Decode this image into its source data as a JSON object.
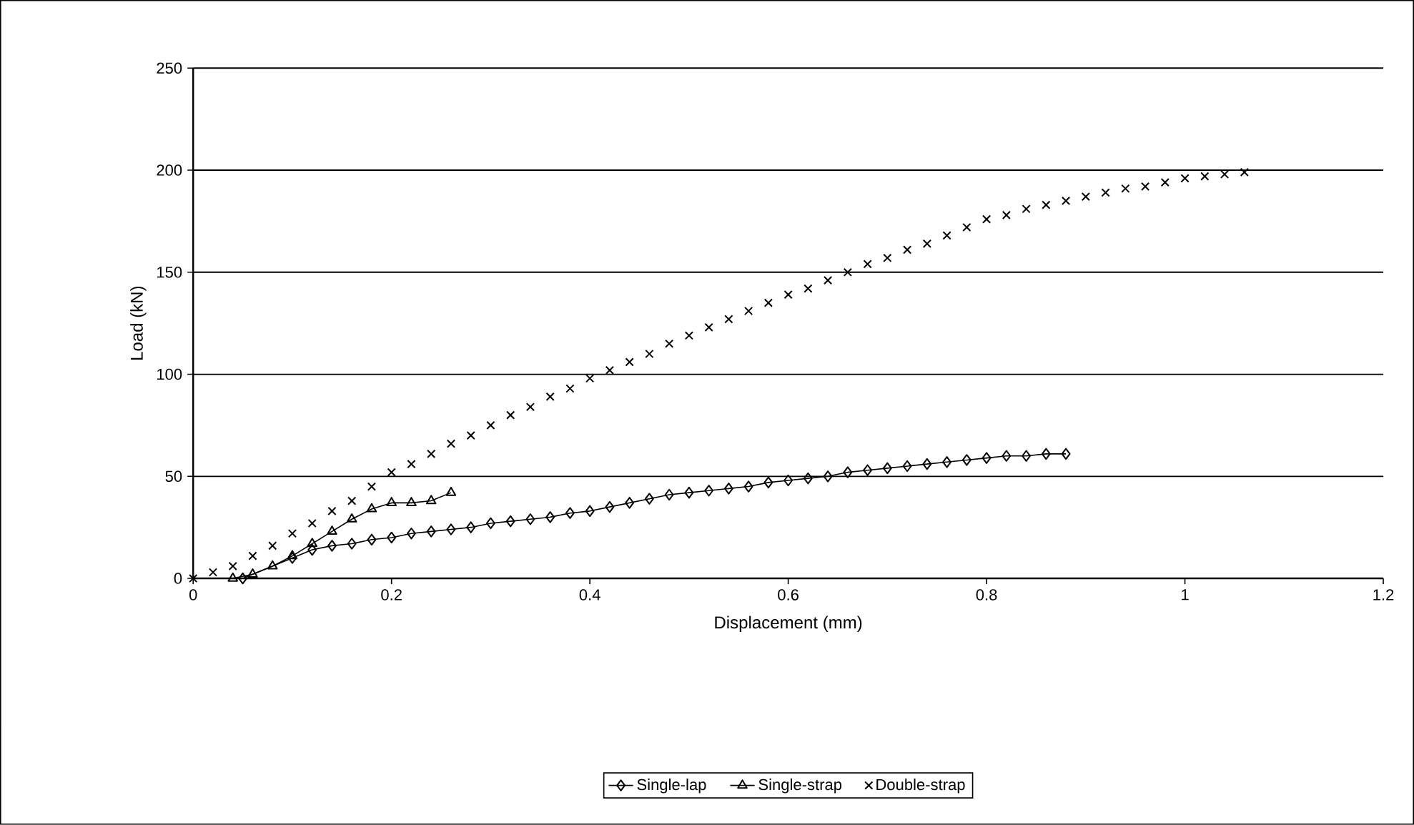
{
  "chart_data": {
    "type": "line",
    "xlabel": "Displacement (mm)",
    "ylabel": "Load (kN)",
    "xlim": [
      0,
      1.2
    ],
    "ylim": [
      0,
      250
    ],
    "xticks": [
      0,
      0.2,
      0.4,
      0.6,
      0.8,
      1,
      1.2
    ],
    "yticks": [
      0,
      50,
      100,
      150,
      200,
      250
    ],
    "grid": "y",
    "legend": "bottom",
    "series": [
      {
        "name": "Single-lap",
        "color": "#000000",
        "marker": "diamond",
        "line_style": "solid",
        "x": [
          0.05,
          0.1,
          0.12,
          0.14,
          0.16,
          0.18,
          0.2,
          0.22,
          0.24,
          0.26,
          0.28,
          0.3,
          0.32,
          0.34,
          0.36,
          0.38,
          0.4,
          0.42,
          0.44,
          0.46,
          0.48,
          0.5,
          0.52,
          0.54,
          0.56,
          0.58,
          0.6,
          0.62,
          0.64,
          0.66,
          0.68,
          0.7,
          0.72,
          0.74,
          0.76,
          0.78,
          0.8,
          0.82,
          0.84,
          0.86,
          0.88
        ],
        "values": [
          0,
          10,
          14,
          16,
          17,
          19,
          20,
          22,
          23,
          24,
          25,
          27,
          28,
          29,
          30,
          32,
          33,
          35,
          37,
          39,
          41,
          42,
          43,
          44,
          45,
          47,
          48,
          49,
          50,
          52,
          53,
          54,
          55,
          56,
          57,
          58,
          59,
          60,
          60,
          61,
          61
        ]
      },
      {
        "name": "Single-strap",
        "color": "#000000",
        "marker": "triangle",
        "line_style": "solid",
        "x": [
          0.04,
          0.06,
          0.08,
          0.1,
          0.12,
          0.14,
          0.16,
          0.18,
          0.2,
          0.22,
          0.24,
          0.26
        ],
        "values": [
          0,
          2,
          6,
          11,
          17,
          23,
          29,
          34,
          37,
          37,
          38,
          42
        ]
      },
      {
        "name": "Double-strap",
        "type": "scatter",
        "color": "#000000",
        "marker": "cross",
        "x": [
          0,
          0.02,
          0.04,
          0.06,
          0.08,
          0.1,
          0.12,
          0.14,
          0.16,
          0.18,
          0.2,
          0.22,
          0.24,
          0.26,
          0.28,
          0.3,
          0.32,
          0.34,
          0.36,
          0.38,
          0.4,
          0.42,
          0.44,
          0.46,
          0.48,
          0.5,
          0.52,
          0.54,
          0.56,
          0.58,
          0.6,
          0.62,
          0.64,
          0.66,
          0.68,
          0.7,
          0.72,
          0.74,
          0.76,
          0.78,
          0.8,
          0.82,
          0.84,
          0.86,
          0.88,
          0.9,
          0.92,
          0.94,
          0.96,
          0.98,
          1.0,
          1.02,
          1.04,
          1.06
        ],
        "values": [
          0,
          3,
          6,
          11,
          16,
          22,
          27,
          33,
          38,
          45,
          52,
          56,
          61,
          66,
          70,
          75,
          80,
          84,
          89,
          93,
          98,
          102,
          106,
          110,
          115,
          119,
          123,
          127,
          131,
          135,
          139,
          142,
          146,
          150,
          154,
          157,
          161,
          164,
          168,
          172,
          176,
          178,
          181,
          183,
          185,
          187,
          189,
          191,
          192,
          194,
          196,
          197,
          198,
          199
        ]
      }
    ]
  }
}
